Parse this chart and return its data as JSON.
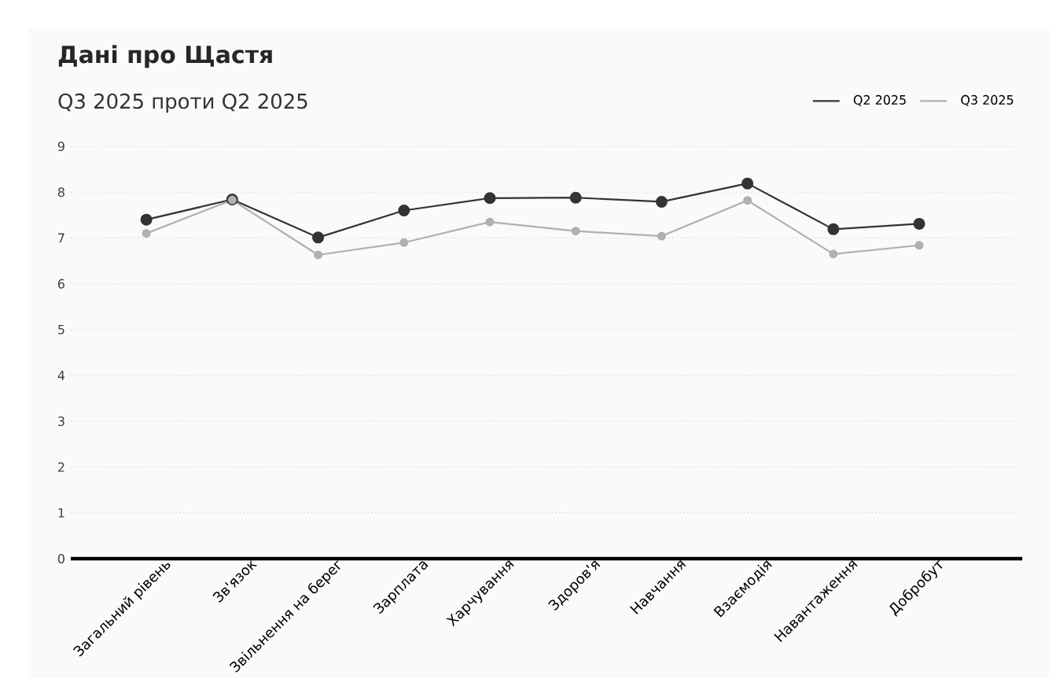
{
  "chart_data": {
    "type": "line",
    "title": "Дані про Щастя",
    "subtitle": "Q3 2025 проти Q2 2025",
    "categories": [
      "Загальний рівень",
      "Зв'язок",
      "Звільнення на берег",
      "Зарплата",
      "Харчування",
      "Здоров'я",
      "Навчання",
      "Взаємодія",
      "Навантаження",
      "Добробут"
    ],
    "series": [
      {
        "name": "Q2 2025",
        "color": "#333333",
        "values": [
          7.4,
          7.84,
          7.01,
          7.6,
          7.87,
          7.88,
          7.79,
          8.19,
          7.19,
          7.31
        ]
      },
      {
        "name": "Q3 2025",
        "color": "#b0b0b0",
        "values": [
          7.1,
          7.83,
          6.63,
          6.9,
          7.35,
          7.15,
          7.04,
          7.82,
          6.65,
          6.84
        ]
      }
    ],
    "ylim": [
      0,
      9
    ],
    "yticks": [
      0,
      1,
      2,
      3,
      4,
      5,
      6,
      7,
      8,
      9
    ],
    "grid": "y",
    "legend": "top right",
    "marker": "circle",
    "line_style": "solid"
  }
}
